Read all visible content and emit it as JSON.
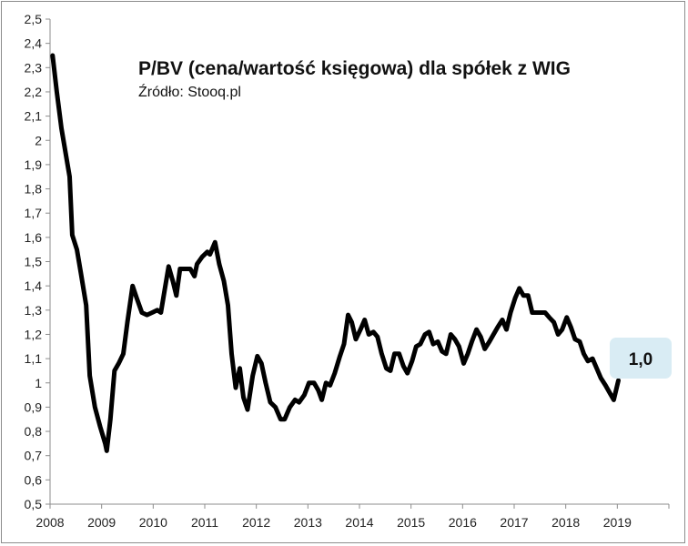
{
  "chart_data": {
    "type": "line",
    "title": "P/BV (cena/wartość księgowa) dla spółek z WIG",
    "subtitle": "Źródło: Stooq.pl",
    "xlabel": "",
    "ylabel": "",
    "xlim": [
      2008,
      2020
    ],
    "ylim": [
      0.5,
      2.5
    ],
    "x_ticks": [
      2008,
      2009,
      2010,
      2011,
      2012,
      2013,
      2014,
      2015,
      2016,
      2017,
      2018,
      2019
    ],
    "x_tick_labels": [
      "2008",
      "2009",
      "2010",
      "2011",
      "2012",
      "2013",
      "2014",
      "2015",
      "2016",
      "2017",
      "2018",
      "2019"
    ],
    "y_ticks": [
      0.5,
      0.6,
      0.7,
      0.8,
      0.9,
      1.0,
      1.1,
      1.2,
      1.3,
      1.4,
      1.5,
      1.6,
      1.7,
      1.8,
      1.9,
      2.0,
      2.1,
      2.2,
      2.3,
      2.4,
      2.5
    ],
    "y_tick_labels": [
      "0,5",
      "0,6",
      "0,7",
      "0,8",
      "0,9",
      "1",
      "1,1",
      "1,2",
      "1,3",
      "1,4",
      "1,5",
      "1,6",
      "1,7",
      "1,8",
      "1,9",
      "2",
      "2,1",
      "2,2",
      "2,3",
      "2,4",
      "2,5"
    ],
    "grid": false,
    "line_color": "#000000",
    "callout": {
      "text": "1,0",
      "fill": "#d9ecf4"
    },
    "series": [
      {
        "points": [
          [
            2008.05,
            2.35
          ],
          [
            2008.13,
            2.2
          ],
          [
            2008.22,
            2.05
          ],
          [
            2008.3,
            1.95
          ],
          [
            2008.38,
            1.85
          ],
          [
            2008.43,
            1.61
          ],
          [
            2008.52,
            1.55
          ],
          [
            2008.6,
            1.45
          ],
          [
            2008.7,
            1.32
          ],
          [
            2008.77,
            1.03
          ],
          [
            2008.87,
            0.9
          ],
          [
            2008.97,
            0.82
          ],
          [
            2009.07,
            0.75
          ],
          [
            2009.1,
            0.72
          ],
          [
            2009.17,
            0.85
          ],
          [
            2009.25,
            1.05
          ],
          [
            2009.33,
            1.08
          ],
          [
            2009.42,
            1.12
          ],
          [
            2009.5,
            1.25
          ],
          [
            2009.6,
            1.4
          ],
          [
            2009.68,
            1.35
          ],
          [
            2009.78,
            1.29
          ],
          [
            2009.88,
            1.28
          ],
          [
            2009.98,
            1.29
          ],
          [
            2010.08,
            1.3
          ],
          [
            2010.15,
            1.29
          ],
          [
            2010.22,
            1.38
          ],
          [
            2010.3,
            1.48
          ],
          [
            2010.38,
            1.42
          ],
          [
            2010.45,
            1.36
          ],
          [
            2010.52,
            1.47
          ],
          [
            2010.62,
            1.47
          ],
          [
            2010.72,
            1.47
          ],
          [
            2010.8,
            1.44
          ],
          [
            2010.85,
            1.49
          ],
          [
            2010.95,
            1.52
          ],
          [
            2011.05,
            1.54
          ],
          [
            2011.1,
            1.53
          ],
          [
            2011.2,
            1.58
          ],
          [
            2011.28,
            1.49
          ],
          [
            2011.37,
            1.42
          ],
          [
            2011.45,
            1.32
          ],
          [
            2011.52,
            1.12
          ],
          [
            2011.6,
            0.98
          ],
          [
            2011.68,
            1.06
          ],
          [
            2011.75,
            0.94
          ],
          [
            2011.83,
            0.89
          ],
          [
            2011.93,
            1.03
          ],
          [
            2012.02,
            1.11
          ],
          [
            2012.1,
            1.08
          ],
          [
            2012.18,
            1.0
          ],
          [
            2012.27,
            0.92
          ],
          [
            2012.37,
            0.9
          ],
          [
            2012.47,
            0.85
          ],
          [
            2012.55,
            0.85
          ],
          [
            2012.65,
            0.9
          ],
          [
            2012.75,
            0.93
          ],
          [
            2012.83,
            0.92
          ],
          [
            2012.93,
            0.95
          ],
          [
            2013.02,
            1.0
          ],
          [
            2013.12,
            1.0
          ],
          [
            2013.2,
            0.97
          ],
          [
            2013.27,
            0.93
          ],
          [
            2013.35,
            1.0
          ],
          [
            2013.43,
            0.99
          ],
          [
            2013.52,
            1.04
          ],
          [
            2013.62,
            1.11
          ],
          [
            2013.7,
            1.16
          ],
          [
            2013.78,
            1.28
          ],
          [
            2013.85,
            1.25
          ],
          [
            2013.93,
            1.18
          ],
          [
            2014.02,
            1.22
          ],
          [
            2014.1,
            1.26
          ],
          [
            2014.18,
            1.2
          ],
          [
            2014.27,
            1.21
          ],
          [
            2014.35,
            1.19
          ],
          [
            2014.43,
            1.12
          ],
          [
            2014.52,
            1.06
          ],
          [
            2014.6,
            1.05
          ],
          [
            2014.68,
            1.12
          ],
          [
            2014.77,
            1.12
          ],
          [
            2014.85,
            1.07
          ],
          [
            2014.93,
            1.04
          ],
          [
            2015.02,
            1.09
          ],
          [
            2015.1,
            1.15
          ],
          [
            2015.18,
            1.16
          ],
          [
            2015.27,
            1.2
          ],
          [
            2015.35,
            1.21
          ],
          [
            2015.43,
            1.16
          ],
          [
            2015.52,
            1.17
          ],
          [
            2015.6,
            1.13
          ],
          [
            2015.68,
            1.12
          ],
          [
            2015.77,
            1.2
          ],
          [
            2015.85,
            1.18
          ],
          [
            2015.93,
            1.15
          ],
          [
            2016.02,
            1.08
          ],
          [
            2016.1,
            1.12
          ],
          [
            2016.18,
            1.17
          ],
          [
            2016.27,
            1.22
          ],
          [
            2016.35,
            1.19
          ],
          [
            2016.43,
            1.14
          ],
          [
            2016.52,
            1.17
          ],
          [
            2016.6,
            1.2
          ],
          [
            2016.68,
            1.23
          ],
          [
            2016.77,
            1.26
          ],
          [
            2016.85,
            1.22
          ],
          [
            2016.93,
            1.29
          ],
          [
            2017.02,
            1.35
          ],
          [
            2017.1,
            1.39
          ],
          [
            2017.18,
            1.36
          ],
          [
            2017.27,
            1.36
          ],
          [
            2017.35,
            1.29
          ],
          [
            2017.43,
            1.29
          ],
          [
            2017.52,
            1.29
          ],
          [
            2017.6,
            1.29
          ],
          [
            2017.68,
            1.27
          ],
          [
            2017.77,
            1.25
          ],
          [
            2017.85,
            1.2
          ],
          [
            2017.93,
            1.22
          ],
          [
            2018.02,
            1.27
          ],
          [
            2018.1,
            1.23
          ],
          [
            2018.18,
            1.18
          ],
          [
            2018.27,
            1.17
          ],
          [
            2018.35,
            1.12
          ],
          [
            2018.43,
            1.09
          ],
          [
            2018.52,
            1.1
          ],
          [
            2018.6,
            1.06
          ],
          [
            2018.68,
            1.02
          ],
          [
            2018.77,
            0.99
          ],
          [
            2018.85,
            0.96
          ],
          [
            2018.93,
            0.93
          ],
          [
            2019.02,
            1.01
          ]
        ]
      }
    ]
  }
}
